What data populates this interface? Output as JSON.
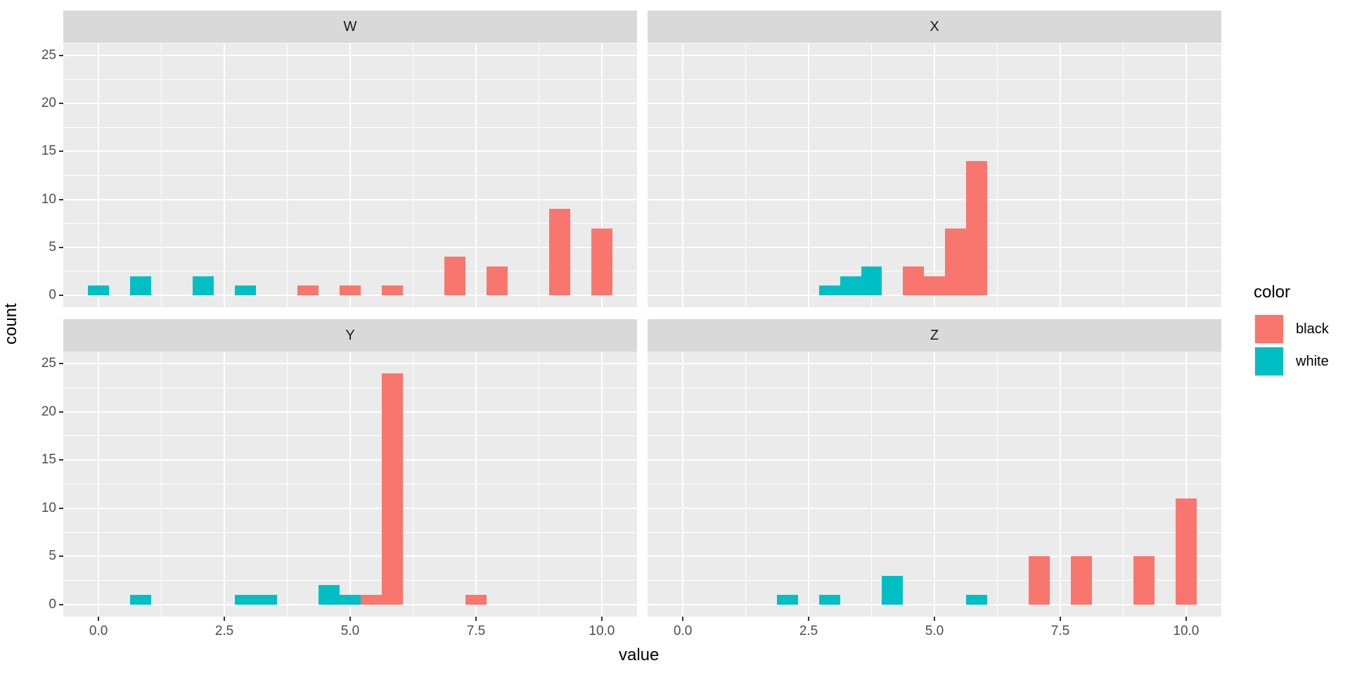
{
  "chart_data": {
    "type": "bar",
    "subtype": "faceted stacked histogram",
    "title": "",
    "xlabel": "value",
    "ylabel": "count",
    "xlim": [
      -0.7,
      10.7
    ],
    "ylim": [
      -1.25,
      26.25
    ],
    "x_ticks": [
      "0.0",
      "2.5",
      "5.0",
      "7.5",
      "10.0"
    ],
    "x_tick_values": [
      0,
      2.5,
      5,
      7.5,
      10
    ],
    "y_ticks": [
      "0",
      "5",
      "10",
      "15",
      "20",
      "25"
    ],
    "y_tick_values": [
      0,
      5,
      10,
      15,
      20,
      25
    ],
    "bin_width": 0.4167,
    "grid": true,
    "legend": {
      "title": "color",
      "position": "right",
      "entries": [
        {
          "label": "black",
          "color": "#F8766D"
        },
        {
          "label": "white",
          "color": "#00BFC4"
        }
      ]
    },
    "facets": [
      {
        "label": "W",
        "series": [
          {
            "name": "white",
            "x": [
              0.0,
              0.833,
              2.083,
              2.917
            ],
            "values": [
              1,
              2,
              2,
              1
            ]
          },
          {
            "name": "black",
            "x": [
              4.167,
              5.0,
              5.833,
              7.083,
              7.917,
              9.167,
              10.0
            ],
            "values": [
              1,
              1,
              1,
              4,
              3,
              9,
              7
            ]
          }
        ]
      },
      {
        "label": "X",
        "series": [
          {
            "name": "white",
            "x": [
              2.917,
              3.333,
              3.75
            ],
            "values": [
              1,
              2,
              3
            ]
          },
          {
            "name": "black",
            "x": [
              4.583,
              5.0,
              5.417,
              5.833
            ],
            "values": [
              3,
              2,
              7,
              14
            ]
          }
        ]
      },
      {
        "label": "Y",
        "series": [
          {
            "name": "white",
            "x": [
              0.833,
              2.917,
              3.333,
              4.583,
              5.0
            ],
            "values": [
              1,
              1,
              1,
              2,
              1
            ]
          },
          {
            "name": "black",
            "x": [
              5.417,
              5.833,
              7.5
            ],
            "values": [
              1,
              24,
              1
            ]
          }
        ]
      },
      {
        "label": "Z",
        "series": [
          {
            "name": "white",
            "x": [
              2.083,
              2.917,
              4.167,
              5.833
            ],
            "values": [
              1,
              1,
              3,
              1
            ]
          },
          {
            "name": "black",
            "x": [
              7.083,
              7.917,
              9.167,
              10.0
            ],
            "values": [
              5,
              5,
              5,
              11
            ]
          }
        ]
      }
    ]
  },
  "labels": {
    "xlabel": "value",
    "ylabel": "count",
    "legend_title": "color",
    "legend_black": "black",
    "legend_white": "white",
    "facet_W": "W",
    "facet_X": "X",
    "facet_Y": "Y",
    "facet_Z": "Z"
  },
  "colors": {
    "black": "#F8766D",
    "white": "#00BFC4",
    "panel_bg": "#EBEBEB",
    "strip_bg": "#D9D9D9"
  }
}
